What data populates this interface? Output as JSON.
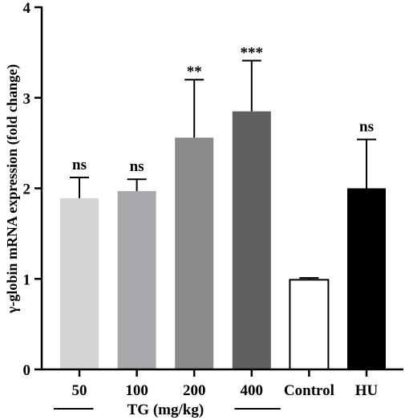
{
  "chart_data": {
    "type": "bar",
    "ylabel": "γ-globin mRNA expression (fold change)",
    "ylim": [
      0,
      4
    ],
    "yticks": [
      0,
      1,
      2,
      3,
      4
    ],
    "grid": false,
    "categories": [
      "50",
      "100",
      "200",
      "400",
      "Control",
      "HU"
    ],
    "values": [
      1.89,
      1.97,
      2.56,
      2.85,
      0.99,
      2.0
    ],
    "errors": [
      0.23,
      0.13,
      0.64,
      0.56,
      0.02,
      0.54
    ],
    "significance": [
      "ns",
      "ns",
      "**",
      "***",
      "",
      "ns"
    ],
    "bar_colors": [
      "#d4d4d4",
      "#a8a8aa",
      "#8a8a8a",
      "#5f5f5f",
      "#ffffff",
      "#000000"
    ],
    "group_label": "TG (mg/kg)",
    "group_span": [
      0,
      3
    ]
  }
}
